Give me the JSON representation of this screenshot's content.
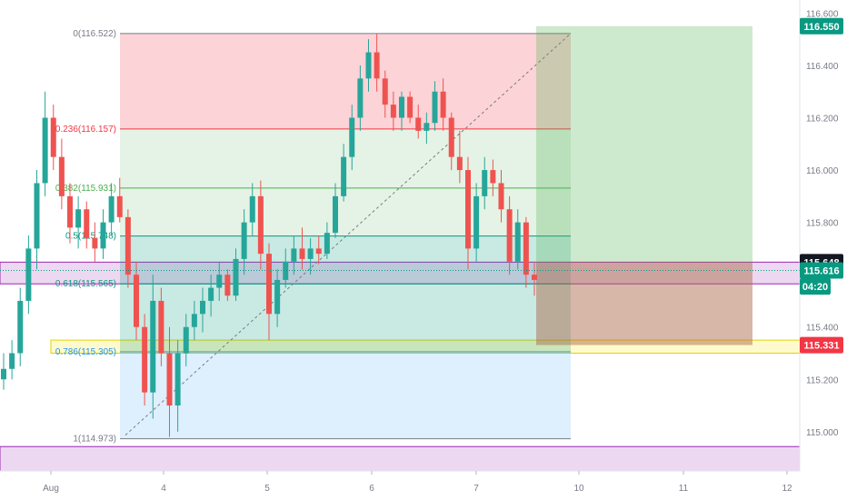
{
  "chart_data": {
    "type": "candlestick",
    "price_axis": {
      "min": 114.85,
      "max": 116.65,
      "ticks": [
        "116.600",
        "116.400",
        "116.200",
        "116.000",
        "115.800",
        "115.600",
        "115.400",
        "115.200",
        "115.000"
      ]
    },
    "time_axis": {
      "ticks": [
        "Aug",
        "4",
        "5",
        "6",
        "7",
        "10",
        "11",
        "12"
      ]
    },
    "fibonacci": [
      {
        "label": "0(116.522)",
        "price": 116.522,
        "color": "#787b86"
      },
      {
        "label": "0.236(116.157)",
        "price": 116.157,
        "color": "#f23645"
      },
      {
        "label": "0.382(115.931)",
        "price": 115.931,
        "color": "#4caf50"
      },
      {
        "label": "0.5(115.748)",
        "price": 115.748,
        "color": "#089981"
      },
      {
        "label": "0.618(115.565)",
        "price": 115.565,
        "color": "#089981"
      },
      {
        "label": "0.786(115.305)",
        "price": 115.305,
        "color": "#2196f3"
      },
      {
        "label": "1(114.973)",
        "price": 114.973,
        "color": "#787b86"
      }
    ],
    "price_tags": [
      {
        "label": "116.550",
        "price": 116.55,
        "color": "#089981"
      },
      {
        "label": "115.648",
        "price": 115.648,
        "color": "#131722"
      },
      {
        "label": "115.616",
        "price": 115.616,
        "color": "#089981"
      },
      {
        "label": "04:20",
        "price": 115.555,
        "color": "#089981"
      },
      {
        "label": "115.331",
        "price": 115.331,
        "color": "#f23645"
      }
    ],
    "position": {
      "type": "long",
      "entry": 115.331,
      "target": 116.55,
      "stop": 115.648
    },
    "candles": [
      [
        115.2,
        115.3,
        115.16,
        115.24
      ],
      [
        115.24,
        115.35,
        115.2,
        115.3
      ],
      [
        115.3,
        115.55,
        115.25,
        115.5
      ],
      [
        115.5,
        115.75,
        115.45,
        115.7
      ],
      [
        115.7,
        116.0,
        115.62,
        115.95
      ],
      [
        115.95,
        116.3,
        115.9,
        116.2
      ],
      [
        116.2,
        116.25,
        116.0,
        116.05
      ],
      [
        116.05,
        116.12,
        115.85,
        115.9
      ],
      [
        115.9,
        115.95,
        115.72,
        115.78
      ],
      [
        115.78,
        115.9,
        115.7,
        115.85
      ],
      [
        115.85,
        115.88,
        115.7,
        115.74
      ],
      [
        115.74,
        115.8,
        115.65,
        115.7
      ],
      [
        115.7,
        115.85,
        115.66,
        115.8
      ],
      [
        115.8,
        115.95,
        115.75,
        115.9
      ],
      [
        115.9,
        115.97,
        115.8,
        115.82
      ],
      [
        115.82,
        115.85,
        115.55,
        115.6
      ],
      [
        115.6,
        115.65,
        115.35,
        115.4
      ],
      [
        115.4,
        115.45,
        115.1,
        115.15
      ],
      [
        115.15,
        115.6,
        115.05,
        115.5
      ],
      [
        115.5,
        115.55,
        115.25,
        115.3
      ],
      [
        115.3,
        115.4,
        114.98,
        115.1
      ],
      [
        115.1,
        115.35,
        115.0,
        115.3
      ],
      [
        115.3,
        115.45,
        115.25,
        115.4
      ],
      [
        115.4,
        115.5,
        115.35,
        115.45
      ],
      [
        115.45,
        115.55,
        115.38,
        115.5
      ],
      [
        115.5,
        115.6,
        115.44,
        115.55
      ],
      [
        115.55,
        115.65,
        115.5,
        115.6
      ],
      [
        115.6,
        115.62,
        115.5,
        115.52
      ],
      [
        115.52,
        115.7,
        115.5,
        115.66
      ],
      [
        115.66,
        115.85,
        115.6,
        115.8
      ],
      [
        115.8,
        115.95,
        115.75,
        115.9
      ],
      [
        115.9,
        115.96,
        115.62,
        115.68
      ],
      [
        115.68,
        115.72,
        115.35,
        115.45
      ],
      [
        115.45,
        115.62,
        115.4,
        115.58
      ],
      [
        115.58,
        115.7,
        115.55,
        115.65
      ],
      [
        115.65,
        115.75,
        115.6,
        115.7
      ],
      [
        115.7,
        115.78,
        115.62,
        115.66
      ],
      [
        115.66,
        115.74,
        115.6,
        115.7
      ],
      [
        115.7,
        115.75,
        115.64,
        115.68
      ],
      [
        115.68,
        115.8,
        115.66,
        115.76
      ],
      [
        115.76,
        115.95,
        115.74,
        115.9
      ],
      [
        115.9,
        116.1,
        115.88,
        116.05
      ],
      [
        116.05,
        116.25,
        116.0,
        116.2
      ],
      [
        116.2,
        116.4,
        116.15,
        116.35
      ],
      [
        116.35,
        116.5,
        116.3,
        116.45
      ],
      [
        116.45,
        116.52,
        116.3,
        116.35
      ],
      [
        116.35,
        116.38,
        116.2,
        116.25
      ],
      [
        116.25,
        116.3,
        116.15,
        116.2
      ],
      [
        116.2,
        116.3,
        116.15,
        116.28
      ],
      [
        116.28,
        116.3,
        116.18,
        116.2
      ],
      [
        116.2,
        116.25,
        116.12,
        116.15
      ],
      [
        116.15,
        116.22,
        116.1,
        116.18
      ],
      [
        116.18,
        116.34,
        116.15,
        116.3
      ],
      [
        116.3,
        116.35,
        116.15,
        116.2
      ],
      [
        116.2,
        116.22,
        116.0,
        116.05
      ],
      [
        116.05,
        116.15,
        115.95,
        116.0
      ],
      [
        116.0,
        116.05,
        115.62,
        115.7
      ],
      [
        115.7,
        115.95,
        115.65,
        115.9
      ],
      [
        115.9,
        116.05,
        115.85,
        116.0
      ],
      [
        116.0,
        116.04,
        115.9,
        115.95
      ],
      [
        115.95,
        116.0,
        115.8,
        115.85
      ],
      [
        115.85,
        115.9,
        115.6,
        115.65
      ],
      [
        115.65,
        115.85,
        115.62,
        115.8
      ],
      [
        115.8,
        115.82,
        115.55,
        115.6
      ],
      [
        115.6,
        115.65,
        115.52,
        115.58
      ]
    ]
  }
}
